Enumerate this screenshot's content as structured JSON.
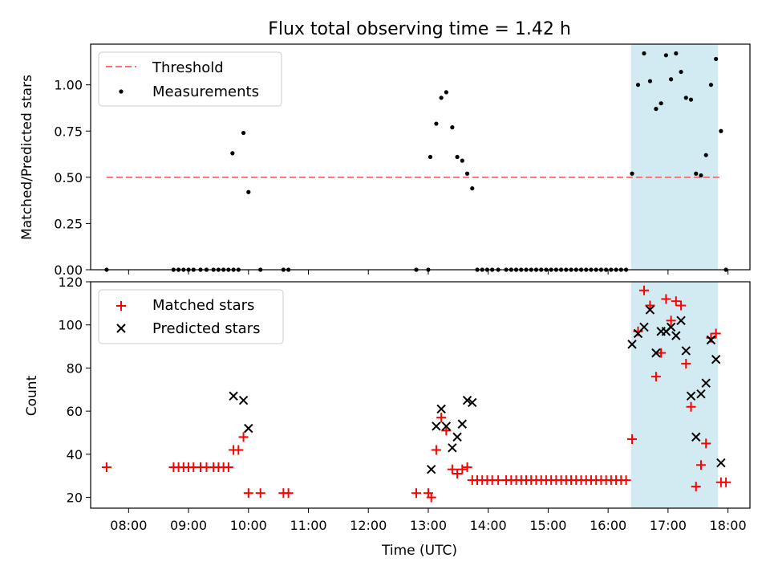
{
  "chart_data": [
    {
      "type": "scatter",
      "title": "Flux total observing time = 1.42 h",
      "xlabel": "",
      "ylabel": "Matched/Predicted stars",
      "ylim": [
        0,
        1.22
      ],
      "yticks": [
        "0.00",
        "0.25",
        "0.50",
        "0.75",
        "1.00"
      ],
      "grid": false,
      "legend_position": "top-left",
      "highlight_span": {
        "start": "16:23",
        "end": "17:50",
        "color": "#add8e6"
      },
      "threshold": {
        "name": "Threshold",
        "value": 0.5,
        "color": "#ff7070",
        "x_start": "07:38",
        "x_end": "17:53"
      },
      "series": [
        {
          "name": "Measurements",
          "color": "#000000",
          "points": [
            [
              "07:38",
              0.0
            ],
            [
              "08:45",
              0.0
            ],
            [
              "08:50",
              0.0
            ],
            [
              "08:55",
              0.0
            ],
            [
              "09:00",
              0.0
            ],
            [
              "09:05",
              0.0
            ],
            [
              "09:12",
              0.0
            ],
            [
              "09:18",
              0.0
            ],
            [
              "09:25",
              0.0
            ],
            [
              "09:30",
              0.0
            ],
            [
              "09:35",
              0.0
            ],
            [
              "09:40",
              0.0
            ],
            [
              "09:45",
              0.0
            ],
            [
              "09:44",
              0.63
            ],
            [
              "09:50",
              0.0
            ],
            [
              "09:55",
              0.74
            ],
            [
              "10:00",
              0.42
            ],
            [
              "10:12",
              0.0
            ],
            [
              "10:35",
              0.0
            ],
            [
              "10:40",
              0.0
            ],
            [
              "12:48",
              0.0
            ],
            [
              "13:00",
              0.0
            ],
            [
              "13:02",
              0.61
            ],
            [
              "13:08",
              0.79
            ],
            [
              "13:13",
              0.93
            ],
            [
              "13:18",
              0.96
            ],
            [
              "13:24",
              0.77
            ],
            [
              "13:29",
              0.61
            ],
            [
              "13:34",
              0.59
            ],
            [
              "13:39",
              0.52
            ],
            [
              "13:44",
              0.44
            ],
            [
              "13:49",
              0.0
            ],
            [
              "13:54",
              0.0
            ],
            [
              "13:59",
              0.0
            ],
            [
              "14:04",
              0.0
            ],
            [
              "14:10",
              0.0
            ],
            [
              "14:18",
              0.0
            ],
            [
              "14:23",
              0.0
            ],
            [
              "14:28",
              0.0
            ],
            [
              "14:33",
              0.0
            ],
            [
              "14:38",
              0.0
            ],
            [
              "14:43",
              0.0
            ],
            [
              "14:48",
              0.0
            ],
            [
              "14:53",
              0.0
            ],
            [
              "14:58",
              0.0
            ],
            [
              "15:03",
              0.0
            ],
            [
              "15:08",
              0.0
            ],
            [
              "15:13",
              0.0
            ],
            [
              "15:18",
              0.0
            ],
            [
              "15:23",
              0.0
            ],
            [
              "15:28",
              0.0
            ],
            [
              "15:33",
              0.0
            ],
            [
              "15:38",
              0.0
            ],
            [
              "15:43",
              0.0
            ],
            [
              "15:48",
              0.0
            ],
            [
              "15:53",
              0.0
            ],
            [
              "15:58",
              0.0
            ],
            [
              "16:03",
              0.0
            ],
            [
              "16:08",
              0.0
            ],
            [
              "16:13",
              0.0
            ],
            [
              "16:18",
              0.0
            ],
            [
              "16:24",
              0.52
            ],
            [
              "16:30",
              1.0
            ],
            [
              "16:36",
              1.17
            ],
            [
              "16:42",
              1.02
            ],
            [
              "16:48",
              0.87
            ],
            [
              "16:53",
              0.9
            ],
            [
              "16:58",
              1.16
            ],
            [
              "17:03",
              1.03
            ],
            [
              "17:08",
              1.17
            ],
            [
              "17:13",
              1.07
            ],
            [
              "17:18",
              0.93
            ],
            [
              "17:23",
              0.92
            ],
            [
              "17:28",
              0.52
            ],
            [
              "17:33",
              0.51
            ],
            [
              "17:38",
              0.62
            ],
            [
              "17:43",
              1.0
            ],
            [
              "17:48",
              1.14
            ],
            [
              "17:53",
              0.75
            ],
            [
              "17:58",
              0.0
            ]
          ]
        }
      ]
    },
    {
      "type": "scatter",
      "title": "",
      "xlabel": "Time (UTC)",
      "ylabel": "Count",
      "ylim": [
        15,
        120
      ],
      "yticks": [
        "20",
        "40",
        "60",
        "80",
        "100",
        "120"
      ],
      "xticks": [
        "08:00",
        "09:00",
        "10:00",
        "11:00",
        "12:00",
        "13:00",
        "14:00",
        "15:00",
        "16:00",
        "17:00",
        "18:00"
      ],
      "xlim": [
        "07:22",
        "18:22"
      ],
      "grid": false,
      "legend_position": "top-left",
      "highlight_span": {
        "start": "16:23",
        "end": "17:50",
        "color": "#add8e6"
      },
      "series": [
        {
          "name": "Matched stars",
          "marker": "+",
          "color": "#ff0000",
          "points": [
            [
              "07:38",
              34
            ],
            [
              "08:45",
              34
            ],
            [
              "08:50",
              34
            ],
            [
              "08:55",
              34
            ],
            [
              "09:00",
              34
            ],
            [
              "09:05",
              34
            ],
            [
              "09:12",
              34
            ],
            [
              "09:18",
              34
            ],
            [
              "09:25",
              34
            ],
            [
              "09:30",
              34
            ],
            [
              "09:35",
              34
            ],
            [
              "09:40",
              34
            ],
            [
              "09:45",
              42
            ],
            [
              "09:50",
              42
            ],
            [
              "09:55",
              48
            ],
            [
              "10:00",
              22
            ],
            [
              "10:12",
              22
            ],
            [
              "10:35",
              22
            ],
            [
              "10:40",
              22
            ],
            [
              "12:48",
              22
            ],
            [
              "13:00",
              22
            ],
            [
              "13:03",
              20
            ],
            [
              "13:08",
              42
            ],
            [
              "13:13",
              57
            ],
            [
              "13:18",
              51
            ],
            [
              "13:24",
              33
            ],
            [
              "13:29",
              31
            ],
            [
              "13:34",
              33
            ],
            [
              "13:39",
              34
            ],
            [
              "13:44",
              28
            ],
            [
              "13:49",
              28
            ],
            [
              "13:54",
              28
            ],
            [
              "13:59",
              28
            ],
            [
              "14:04",
              28
            ],
            [
              "14:10",
              28
            ],
            [
              "14:18",
              28
            ],
            [
              "14:23",
              28
            ],
            [
              "14:28",
              28
            ],
            [
              "14:33",
              28
            ],
            [
              "14:38",
              28
            ],
            [
              "14:43",
              28
            ],
            [
              "14:48",
              28
            ],
            [
              "14:53",
              28
            ],
            [
              "14:58",
              28
            ],
            [
              "15:03",
              28
            ],
            [
              "15:08",
              28
            ],
            [
              "15:13",
              28
            ],
            [
              "15:18",
              28
            ],
            [
              "15:23",
              28
            ],
            [
              "15:28",
              28
            ],
            [
              "15:33",
              28
            ],
            [
              "15:38",
              28
            ],
            [
              "15:43",
              28
            ],
            [
              "15:48",
              28
            ],
            [
              "15:53",
              28
            ],
            [
              "15:58",
              28
            ],
            [
              "16:03",
              28
            ],
            [
              "16:08",
              28
            ],
            [
              "16:13",
              28
            ],
            [
              "16:18",
              28
            ],
            [
              "16:24",
              47
            ],
            [
              "16:30",
              97
            ],
            [
              "16:36",
              116
            ],
            [
              "16:42",
              109
            ],
            [
              "16:48",
              76
            ],
            [
              "16:53",
              87
            ],
            [
              "16:58",
              112
            ],
            [
              "17:03",
              102
            ],
            [
              "17:08",
              111
            ],
            [
              "17:13",
              109
            ],
            [
              "17:18",
              82
            ],
            [
              "17:23",
              62
            ],
            [
              "17:28",
              25
            ],
            [
              "17:33",
              35
            ],
            [
              "17:38",
              45
            ],
            [
              "17:43",
              94
            ],
            [
              "17:48",
              96
            ],
            [
              "17:53",
              27
            ],
            [
              "17:58",
              27
            ]
          ]
        },
        {
          "name": "Predicted stars",
          "marker": "x",
          "color": "#000000",
          "points": [
            [
              "09:45",
              67
            ],
            [
              "09:55",
              65
            ],
            [
              "10:00",
              52
            ],
            [
              "13:03",
              33
            ],
            [
              "13:08",
              53
            ],
            [
              "13:13",
              61
            ],
            [
              "13:18",
              53
            ],
            [
              "13:24",
              43
            ],
            [
              "13:29",
              48
            ],
            [
              "13:34",
              54
            ],
            [
              "13:39",
              65
            ],
            [
              "13:44",
              64
            ],
            [
              "16:24",
              91
            ],
            [
              "16:30",
              96
            ],
            [
              "16:36",
              99
            ],
            [
              "16:42",
              107
            ],
            [
              "16:48",
              87
            ],
            [
              "16:53",
              97
            ],
            [
              "16:58",
              97
            ],
            [
              "17:03",
              99
            ],
            [
              "17:08",
              95
            ],
            [
              "17:13",
              102
            ],
            [
              "17:18",
              88
            ],
            [
              "17:23",
              67
            ],
            [
              "17:28",
              48
            ],
            [
              "17:33",
              68
            ],
            [
              "17:38",
              73
            ],
            [
              "17:43",
              93
            ],
            [
              "17:48",
              84
            ],
            [
              "17:53",
              36
            ]
          ]
        }
      ]
    }
  ]
}
